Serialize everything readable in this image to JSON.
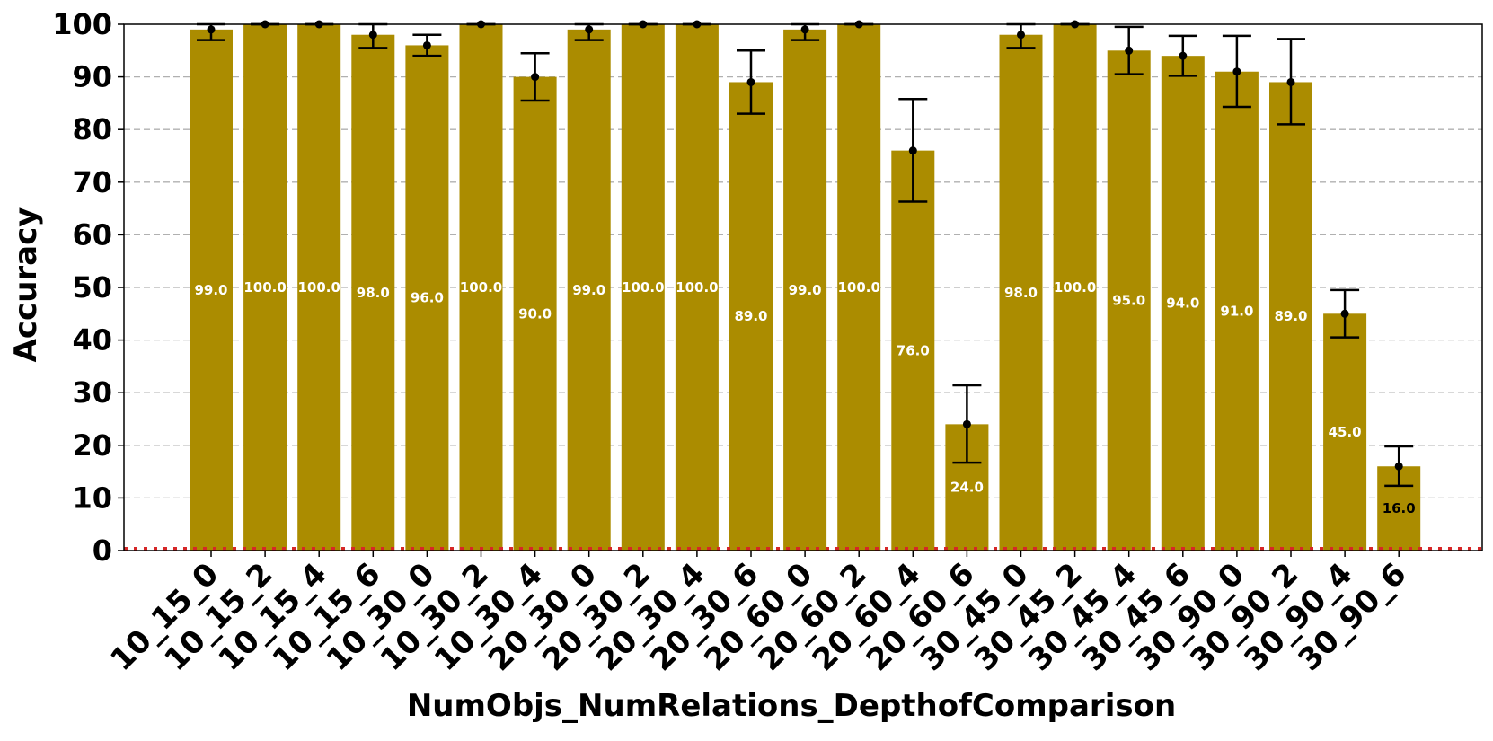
{
  "chart_data": {
    "type": "bar",
    "xlabel": "NumObjs_NumRelations_DepthofComparison",
    "ylabel": "Accuracy",
    "ylim": [
      0,
      100
    ],
    "yticks": [
      0,
      10,
      20,
      30,
      40,
      50,
      60,
      70,
      80,
      90,
      100
    ],
    "grid": "horizontal dashed",
    "categories": [
      "10_15_0",
      "10_15_2",
      "10_15_4",
      "10_15_6",
      "10_30_0",
      "10_30_2",
      "10_30_4",
      "20_30_0",
      "20_30_2",
      "20_30_4",
      "20_30_6",
      "20_60_0",
      "20_60_2",
      "20_60_4",
      "20_60_6",
      "30_45_0",
      "30_45_2",
      "30_45_4",
      "30_45_6",
      "30_90_0",
      "30_90_2",
      "30_90_4",
      "30_90_6"
    ],
    "values": [
      99,
      100,
      100,
      98,
      96,
      100,
      90,
      99,
      100,
      100,
      89,
      99,
      100,
      76,
      24,
      98,
      100,
      95,
      94,
      91,
      89,
      45,
      16
    ],
    "value_labels": [
      "99.0",
      "100.0",
      "100.0",
      "98.0",
      "96.0",
      "100.0",
      "90.0",
      "99.0",
      "100.0",
      "100.0",
      "89.0",
      "99.0",
      "100.0",
      "76.0",
      "24.0",
      "98.0",
      "100.0",
      "95.0",
      "94.0",
      "91.0",
      "89.0",
      "45.0",
      "16.0"
    ],
    "error_low": [
      97,
      100,
      100,
      95.5,
      94,
      100,
      85.5,
      97,
      100,
      100,
      83,
      97,
      100,
      66.3,
      16.7,
      95.5,
      100,
      90.5,
      90.2,
      84.3,
      81,
      40.5,
      12.3
    ],
    "error_high": [
      100,
      100,
      100,
      100,
      98,
      100,
      94.5,
      100,
      100,
      100,
      95,
      100,
      100,
      85.8,
      31.4,
      100,
      100,
      99.5,
      97.8,
      97.8,
      97.2,
      49.5,
      19.8
    ],
    "bar_color": "#ab8c00",
    "label_color": "#ffffff",
    "low_label_color": "#000000",
    "baseline_color": "#d62728"
  }
}
